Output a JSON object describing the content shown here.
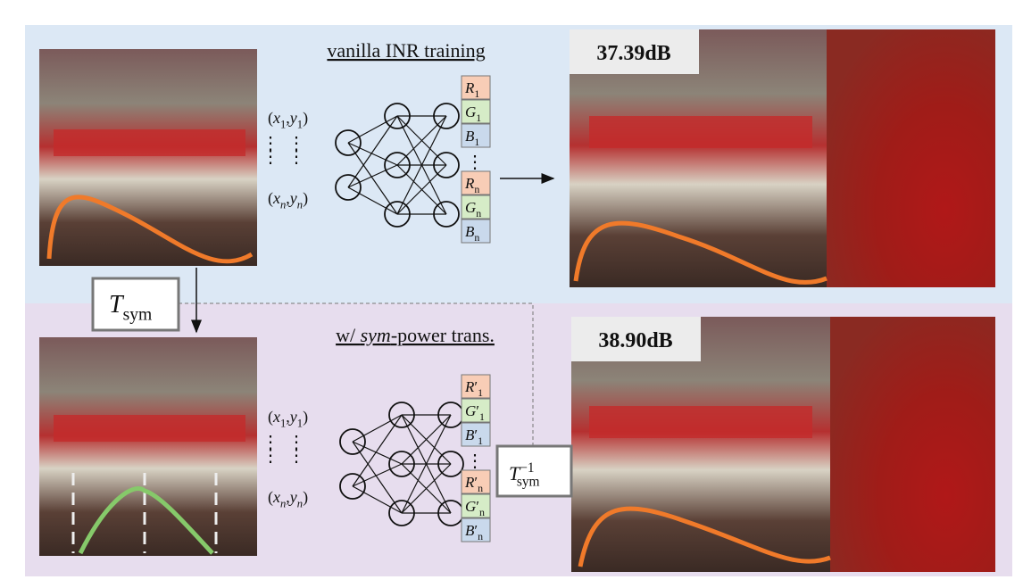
{
  "top": {
    "title": [
      {
        "t": "vanilla INR training"
      }
    ],
    "psnr": "37.39dB",
    "input_1": [
      {
        "t": "("
      },
      {
        "t": "x",
        "i": true
      },
      {
        "t": "1",
        "sub": true
      },
      {
        "t": ","
      },
      {
        "t": "y",
        "i": true
      },
      {
        "t": "1",
        "sub": true
      },
      {
        "t": ")"
      }
    ],
    "input_n": [
      {
        "t": "("
      },
      {
        "t": "x",
        "i": true
      },
      {
        "t": "n",
        "sub": true,
        "i": true
      },
      {
        "t": ","
      },
      {
        "t": "y",
        "i": true
      },
      {
        "t": "n",
        "sub": true,
        "i": true
      },
      {
        "t": ")"
      }
    ],
    "outputs": [
      [
        {
          "t": "R",
          "i": true
        },
        {
          "t": "1",
          "sub": true
        }
      ],
      [
        {
          "t": "G",
          "i": true
        },
        {
          "t": "1",
          "sub": true
        }
      ],
      [
        {
          "t": "B",
          "i": true
        },
        {
          "t": "1",
          "sub": true
        }
      ],
      [
        {
          "t": "R",
          "i": true
        },
        {
          "t": "n",
          "sub": true
        }
      ],
      [
        {
          "t": "G",
          "i": true
        },
        {
          "t": "n",
          "sub": true
        }
      ],
      [
        {
          "t": "B",
          "i": true
        },
        {
          "t": "n",
          "sub": true
        }
      ]
    ]
  },
  "transform": [
    {
      "t": "T",
      "i": true
    },
    {
      "t": "sym",
      "sub": true
    }
  ],
  "bottom": {
    "title": [
      {
        "t": "w/ "
      },
      {
        "t": "sym",
        "i": true
      },
      {
        "t": "-power trans."
      }
    ],
    "psnr": "38.90dB",
    "input_1": [
      {
        "t": "("
      },
      {
        "t": "x",
        "i": true
      },
      {
        "t": "1",
        "sub": true
      },
      {
        "t": ","
      },
      {
        "t": "y",
        "i": true
      },
      {
        "t": "1",
        "sub": true
      },
      {
        "t": ")"
      }
    ],
    "input_n": [
      {
        "t": "("
      },
      {
        "t": "x",
        "i": true
      },
      {
        "t": "n",
        "sub": true,
        "i": true
      },
      {
        "t": ","
      },
      {
        "t": "y",
        "i": true
      },
      {
        "t": "n",
        "sub": true,
        "i": true
      },
      {
        "t": ")"
      }
    ],
    "outputs": [
      [
        {
          "t": "R",
          "i": true
        },
        {
          "t": "′"
        },
        {
          "t": "1",
          "sub": true
        }
      ],
      [
        {
          "t": "G",
          "i": true
        },
        {
          "t": "′"
        },
        {
          "t": "1",
          "sub": true
        }
      ],
      [
        {
          "t": "B",
          "i": true
        },
        {
          "t": "′"
        },
        {
          "t": "1",
          "sub": true
        }
      ],
      [
        {
          "t": "R",
          "i": true
        },
        {
          "t": "′"
        },
        {
          "t": "n",
          "sub": true
        }
      ],
      [
        {
          "t": "G",
          "i": true
        },
        {
          "t": "′"
        },
        {
          "t": "n",
          "sub": true
        }
      ],
      [
        {
          "t": "B",
          "i": true
        },
        {
          "t": "′"
        },
        {
          "t": "n",
          "sub": true
        }
      ]
    ]
  },
  "inverse": [
    {
      "t": "T",
      "i": true
    },
    {
      "t": "−1",
      "sup": true
    },
    {
      "t": "sym",
      "sub": true
    }
  ]
}
